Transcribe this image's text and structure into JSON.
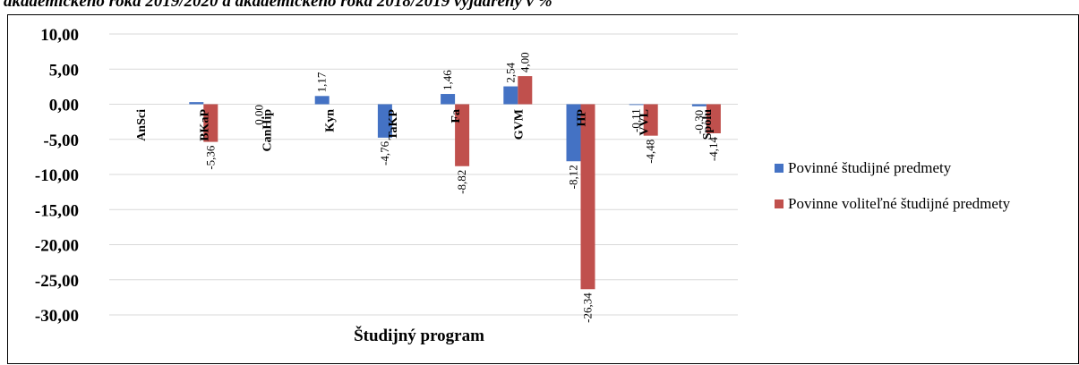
{
  "caption": "akademickeho roka 2019/2020 a akademickeho roka 2018/2019 vyjadrený v %",
  "chart_data": {
    "type": "bar",
    "title": "",
    "xlabel": "Študijný program",
    "ylabel": "",
    "ylim": [
      -30,
      10
    ],
    "yticks": [
      "10,00",
      "5,00",
      "0,00",
      "-5,00",
      "-10,00",
      "-15,00",
      "-20,00",
      "-25,00",
      "-30,00"
    ],
    "categories": [
      "AnSci",
      "BKaP",
      "CanHip",
      "Kyn",
      "TaKP",
      "Fa",
      "GVM",
      "HP",
      "VVL",
      "Spolu"
    ],
    "series": [
      {
        "name": "Povinné študijné predmety",
        "color": "#4472C4",
        "values": [
          null,
          0.3,
          0.0,
          1.17,
          -4.76,
          1.46,
          2.54,
          -8.12,
          -0.11,
          -0.3
        ],
        "labels": [
          "",
          "",
          "0,00",
          "1,17",
          "-4,76",
          "1,46",
          "2,54",
          "-8,12",
          "-0,11",
          "-0,30"
        ]
      },
      {
        "name": "Povinne voliteľné študijné predmety",
        "color": "#C0504D",
        "values": [
          null,
          -5.36,
          null,
          null,
          null,
          -8.82,
          4.0,
          -26.34,
          -4.48,
          -4.14
        ],
        "labels": [
          "",
          "-5,36",
          "",
          "",
          "",
          "-8,82",
          "4,00",
          "-26,34",
          "-4,48",
          "-4,14"
        ]
      }
    ],
    "grid": true,
    "legend": "right"
  }
}
